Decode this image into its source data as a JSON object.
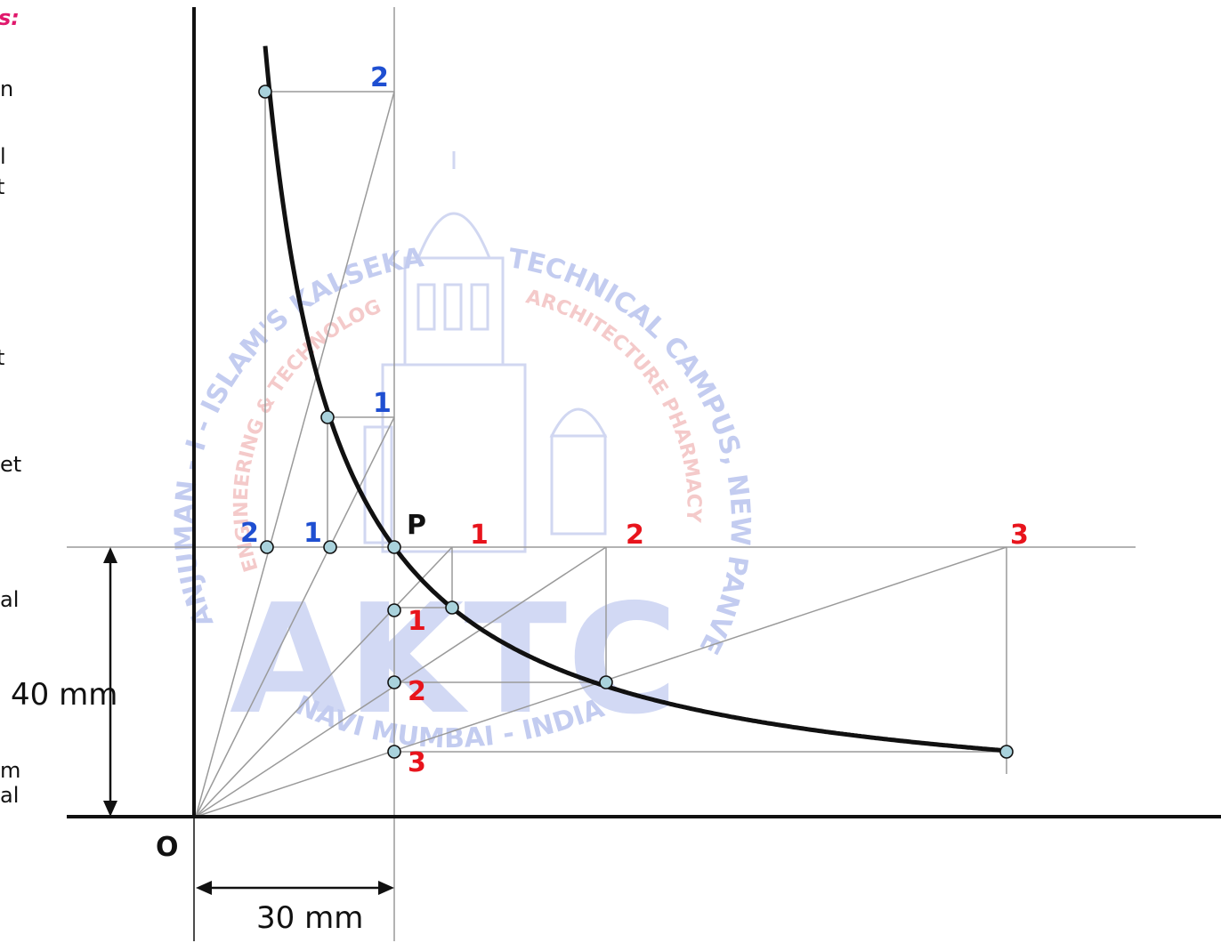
{
  "left_fragments": {
    "heading": "s:",
    "lines": [
      "n",
      "l",
      "t",
      "t",
      "et",
      "al",
      "m",
      "al"
    ]
  },
  "labels": {
    "origin": "O",
    "point_p": "P",
    "upper_1": "1",
    "upper_2": "2",
    "left_1": "1",
    "left_2": "2",
    "right_1": "1",
    "right_2": "2",
    "right_3": "3",
    "lower_1": "1",
    "lower_2": "2",
    "lower_3": "3"
  },
  "dimensions": {
    "vertical": "40 mm",
    "horizontal": "30 mm"
  },
  "watermark": {
    "arc_left": "ANJUMAN - I - ISLAM'S KALSEKAR",
    "arc_right": "TECHNICAL CAMPUS, NEW PANVEL",
    "inner_left": "ENGINEERING & TECHNOLOGY",
    "inner_right": "ARCHITECTURE PHARMACY",
    "logo": "AKTC",
    "bottom": "NAVI MUMBAI - INDIA"
  },
  "colors": {
    "blue_labels": "#1f4fd1",
    "red_labels": "#e8141c",
    "heading": "#e0186c",
    "curve": "#111111",
    "point_fill": "#a9d2dc",
    "construction_lines": "#9a9a9a"
  }
}
